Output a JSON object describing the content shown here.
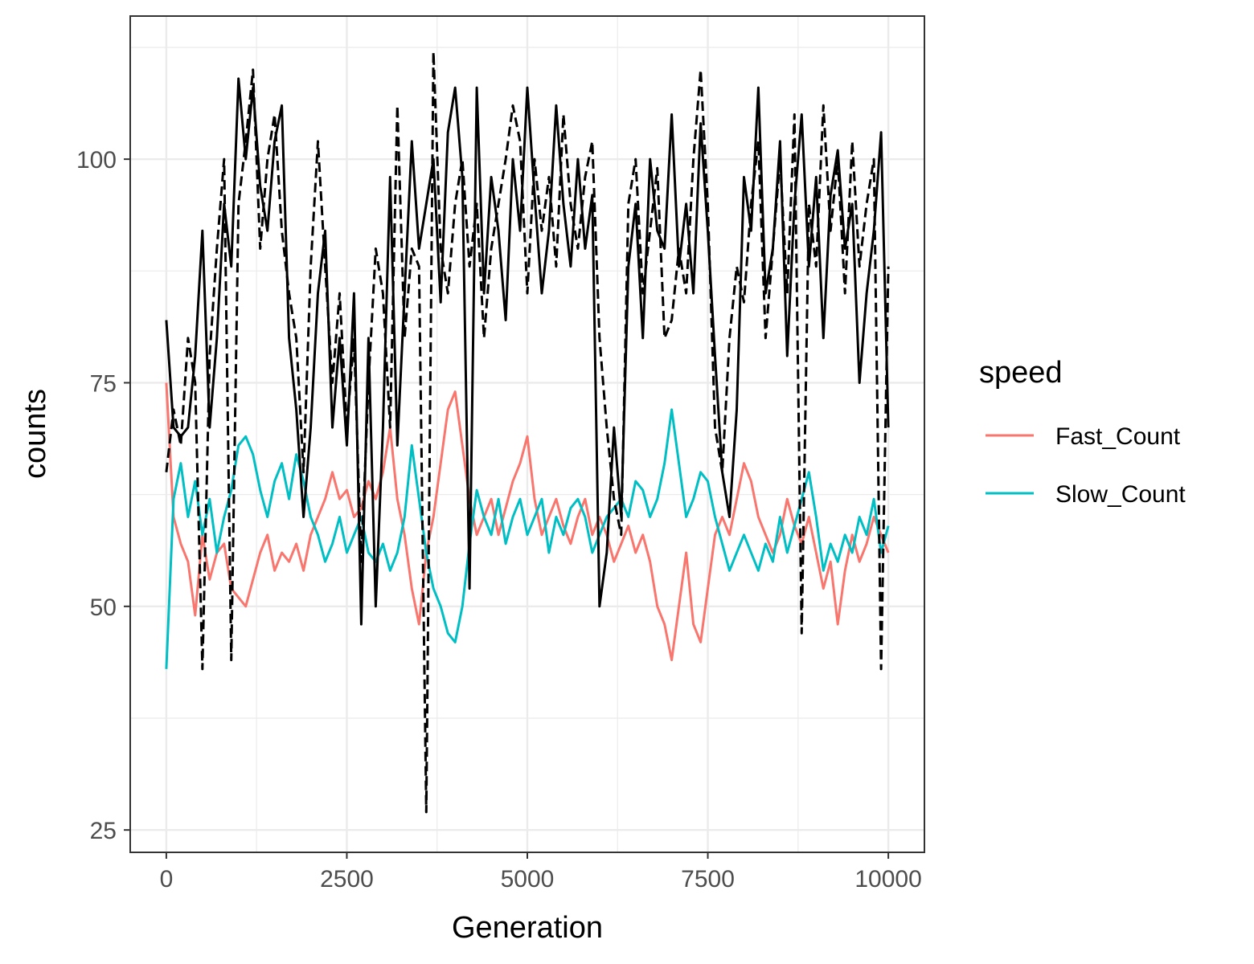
{
  "chart_data": {
    "type": "line",
    "xlabel": "Generation",
    "ylabel": "counts",
    "xlim": [
      -500,
      10500
    ],
    "ylim": [
      22.5,
      116
    ],
    "x_ticks": [
      0,
      2500,
      5000,
      7500,
      10000
    ],
    "x_tick_labels": [
      "0",
      "2500",
      "5000",
      "7500",
      "10000"
    ],
    "y_ticks": [
      25,
      50,
      75,
      100
    ],
    "y_tick_labels": [
      "25",
      "50",
      "75",
      "100"
    ],
    "grid": true,
    "legend": {
      "title": "speed",
      "placement": "right",
      "items": [
        {
          "label": "Fast_Count",
          "color": "#F8766D"
        },
        {
          "label": "Slow_Count",
          "color": "#00BFC4"
        }
      ]
    },
    "series": [
      {
        "name": "Fast_Count",
        "color": "#F8766D",
        "linetype": "solid",
        "x": [
          0,
          100,
          200,
          300,
          400,
          500,
          600,
          700,
          800,
          900,
          1000,
          1100,
          1200,
          1300,
          1400,
          1500,
          1600,
          1700,
          1800,
          1900,
          2000,
          2100,
          2200,
          2300,
          2400,
          2500,
          2600,
          2700,
          2800,
          2900,
          3000,
          3100,
          3200,
          3300,
          3400,
          3500,
          3600,
          3700,
          3800,
          3900,
          4000,
          4100,
          4200,
          4300,
          4400,
          4500,
          4600,
          4700,
          4800,
          4900,
          5000,
          5100,
          5200,
          5300,
          5400,
          5500,
          5600,
          5700,
          5800,
          5900,
          6000,
          6100,
          6200,
          6300,
          6400,
          6500,
          6600,
          6700,
          6800,
          6900,
          7000,
          7100,
          7200,
          7300,
          7400,
          7500,
          7600,
          7700,
          7800,
          7900,
          8000,
          8100,
          8200,
          8300,
          8400,
          8500,
          8600,
          8700,
          8800,
          8900,
          9000,
          9100,
          9200,
          9300,
          9400,
          9500,
          9600,
          9700,
          9800,
          9900,
          10000
        ],
        "y": [
          75,
          60,
          57,
          55,
          49,
          58,
          53,
          56,
          57,
          52,
          51,
          50,
          53,
          56,
          58,
          54,
          56,
          55,
          57,
          54,
          58,
          60,
          62,
          65,
          62,
          63,
          60,
          61,
          64,
          62,
          65,
          70,
          62,
          58,
          52,
          48,
          56,
          60,
          66,
          72,
          74,
          68,
          62,
          58,
          60,
          62,
          58,
          61,
          64,
          66,
          69,
          62,
          58,
          60,
          62,
          59,
          57,
          60,
          62,
          58,
          60,
          58,
          55,
          57,
          59,
          56,
          58,
          55,
          50,
          48,
          44,
          50,
          56,
          48,
          46,
          52,
          58,
          60,
          58,
          62,
          66,
          64,
          60,
          58,
          56,
          58,
          62,
          59,
          57,
          60,
          56,
          52,
          55,
          48,
          54,
          58,
          55,
          57,
          60,
          58,
          56
        ]
      },
      {
        "name": "Slow_Count",
        "color": "#00BFC4",
        "linetype": "solid",
        "x": [
          0,
          100,
          200,
          300,
          400,
          500,
          600,
          700,
          800,
          900,
          1000,
          1100,
          1200,
          1300,
          1400,
          1500,
          1600,
          1700,
          1800,
          1900,
          2000,
          2100,
          2200,
          2300,
          2400,
          2500,
          2600,
          2700,
          2800,
          2900,
          3000,
          3100,
          3200,
          3300,
          3400,
          3500,
          3600,
          3700,
          3800,
          3900,
          4000,
          4100,
          4200,
          4300,
          4400,
          4500,
          4600,
          4700,
          4800,
          4900,
          5000,
          5100,
          5200,
          5300,
          5400,
          5500,
          5600,
          5700,
          5800,
          5900,
          6000,
          6100,
          6200,
          6300,
          6400,
          6500,
          6600,
          6700,
          6800,
          6900,
          7000,
          7100,
          7200,
          7300,
          7400,
          7500,
          7600,
          7700,
          7800,
          7900,
          8000,
          8100,
          8200,
          8300,
          8400,
          8500,
          8600,
          8700,
          8800,
          8900,
          9000,
          9100,
          9200,
          9300,
          9400,
          9500,
          9600,
          9700,
          9800,
          9900,
          10000
        ],
        "y": [
          43,
          62,
          66,
          60,
          64,
          58,
          62,
          56,
          60,
          63,
          68,
          69,
          67,
          63,
          60,
          64,
          66,
          62,
          67,
          64,
          60,
          58,
          55,
          57,
          60,
          56,
          58,
          60,
          56,
          55,
          57,
          54,
          56,
          60,
          68,
          62,
          56,
          52,
          50,
          47,
          46,
          50,
          57,
          63,
          60,
          58,
          62,
          57,
          60,
          62,
          58,
          60,
          62,
          56,
          60,
          58,
          61,
          62,
          60,
          56,
          58,
          60,
          61,
          62,
          60,
          64,
          63,
          60,
          62,
          66,
          72,
          66,
          60,
          62,
          65,
          64,
          60,
          57,
          54,
          56,
          58,
          56,
          54,
          57,
          55,
          60,
          56,
          59,
          62,
          65,
          60,
          54,
          57,
          55,
          58,
          56,
          60,
          58,
          62,
          56,
          59
        ]
      },
      {
        "name": "",
        "color": "#000000",
        "linetype": "solid",
        "x": [
          0,
          100,
          200,
          300,
          400,
          500,
          600,
          700,
          800,
          900,
          1000,
          1100,
          1200,
          1300,
          1400,
          1500,
          1600,
          1700,
          1800,
          1900,
          2000,
          2100,
          2200,
          2300,
          2400,
          2500,
          2600,
          2700,
          2800,
          2900,
          3000,
          3100,
          3200,
          3300,
          3400,
          3500,
          3600,
          3700,
          3800,
          3900,
          4000,
          4100,
          4200,
          4300,
          4400,
          4500,
          4600,
          4700,
          4800,
          4900,
          5000,
          5100,
          5200,
          5300,
          5400,
          5500,
          5600,
          5700,
          5800,
          5900,
          6000,
          6100,
          6200,
          6300,
          6400,
          6500,
          6600,
          6700,
          6800,
          6900,
          7000,
          7100,
          7200,
          7300,
          7400,
          7500,
          7600,
          7700,
          7800,
          7900,
          8000,
          8100,
          8200,
          8300,
          8400,
          8500,
          8600,
          8700,
          8800,
          8900,
          9000,
          9100,
          9200,
          9300,
          9400,
          9500,
          9600,
          9700,
          9800,
          9900,
          10000
        ],
        "y": [
          82,
          70,
          69,
          70,
          78,
          92,
          70,
          80,
          95,
          88,
          109,
          100,
          108,
          97,
          92,
          102,
          106,
          80,
          72,
          60,
          70,
          85,
          92,
          70,
          80,
          68,
          85,
          48,
          80,
          50,
          70,
          98,
          68,
          85,
          102,
          90,
          95,
          100,
          84,
          103,
          108,
          98,
          52,
          108,
          85,
          98,
          92,
          82,
          100,
          92,
          108,
          96,
          85,
          92,
          106,
          95,
          88,
          100,
          90,
          96,
          50,
          56,
          70,
          60,
          88,
          95,
          80,
          100,
          92,
          90,
          105,
          88,
          95,
          85,
          104,
          92,
          78,
          65,
          60,
          72,
          98,
          92,
          108,
          85,
          90,
          102,
          78,
          95,
          105,
          88,
          98,
          80,
          96,
          101,
          90,
          95,
          75,
          85,
          92,
          103,
          70
        ]
      },
      {
        "name": "",
        "color": "#000000",
        "linetype": "dashed",
        "x": [
          0,
          100,
          200,
          300,
          400,
          500,
          600,
          700,
          800,
          900,
          1000,
          1100,
          1200,
          1300,
          1400,
          1500,
          1600,
          1700,
          1800,
          1900,
          2000,
          2100,
          2200,
          2300,
          2400,
          2500,
          2600,
          2700,
          2800,
          2900,
          3000,
          3100,
          3200,
          3300,
          3400,
          3500,
          3600,
          3700,
          3800,
          3900,
          4000,
          4100,
          4200,
          4300,
          4400,
          4500,
          4600,
          4700,
          4800,
          4900,
          5000,
          5100,
          5200,
          5300,
          5400,
          5500,
          5600,
          5700,
          5800,
          5900,
          6000,
          6100,
          6200,
          6300,
          6400,
          6500,
          6600,
          6700,
          6800,
          6900,
          7000,
          7100,
          7200,
          7300,
          7400,
          7500,
          7600,
          7700,
          7800,
          7900,
          8000,
          8100,
          8200,
          8300,
          8400,
          8500,
          8600,
          8700,
          8800,
          8900,
          9000,
          9100,
          9200,
          9300,
          9400,
          9500,
          9600,
          9700,
          9800,
          9900,
          10000
        ],
        "y": [
          65,
          72,
          68,
          80,
          75,
          43,
          78,
          90,
          100,
          44,
          95,
          102,
          110,
          90,
          100,
          105,
          92,
          85,
          80,
          65,
          88,
          102,
          88,
          75,
          85,
          70,
          80,
          55,
          75,
          90,
          85,
          70,
          106,
          80,
          90,
          88,
          27,
          112,
          90,
          85,
          95,
          100,
          88,
          95,
          80,
          90,
          95,
          100,
          106,
          102,
          85,
          100,
          92,
          98,
          88,
          105,
          95,
          90,
          98,
          102,
          80,
          70,
          62,
          58,
          95,
          100,
          85,
          92,
          99,
          80,
          82,
          90,
          85,
          100,
          110,
          95,
          70,
          65,
          80,
          88,
          84,
          95,
          102,
          80,
          90,
          100,
          85,
          105,
          47,
          95,
          88,
          106,
          92,
          100,
          85,
          102,
          88,
          95,
          100,
          43,
          88
        ]
      }
    ]
  }
}
